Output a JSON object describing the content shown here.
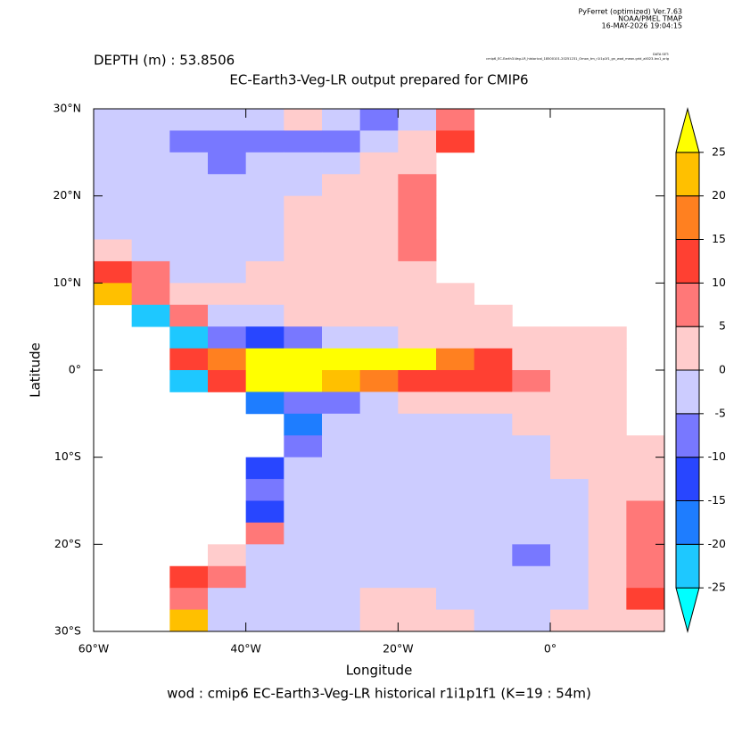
{
  "header": {
    "lines": [
      "PyFerret (optimized) Ver.7.63",
      "NOAA/PMEL TMAP",
      "16-MAY-2026 19:04:15"
    ],
    "dataset_label": "DATA SET:",
    "dataset": "cmip6_EC-Earth3-Veg-LR_historical_18500101-20251231_Omon_tm_r1i1p1f1_gn_wod_mean.grid_all023-lev1_orig"
  },
  "chart_data": {
    "type": "heatmap",
    "subtitle": "DEPTH (m) : 53.8506",
    "title": "EC-Earth3-Veg-LR output prepared for CMIP6",
    "x_label": "Longitude",
    "y_label": "Latitude",
    "footer": "wod : cmip6 EC-Earth3-Veg-LR historical r1i1p1f1   (K=19 : 54m)",
    "xlim": [
      -60,
      15
    ],
    "ylim": [
      -30,
      30
    ],
    "xticks": [
      {
        "value": -60,
        "label": "60°W"
      },
      {
        "value": -40,
        "label": "40°W"
      },
      {
        "value": -20,
        "label": "20°W"
      },
      {
        "value": 0,
        "label": "0°"
      }
    ],
    "yticks": [
      {
        "value": -30,
        "label": "30°S"
      },
      {
        "value": -20,
        "label": "20°S"
      },
      {
        "value": -10,
        "label": "10°S"
      },
      {
        "value": 0,
        "label": "0°"
      },
      {
        "value": 10,
        "label": "10°N"
      },
      {
        "value": 20,
        "label": "20°N"
      },
      {
        "value": 30,
        "label": "30°N"
      }
    ],
    "x": [
      -57.5,
      -52.5,
      -47.5,
      -42.5,
      -37.5,
      -32.5,
      -27.5,
      -22.5,
      -17.5,
      -12.5,
      -7.5,
      -2.5,
      2.5,
      7.5,
      12.5
    ],
    "y": [
      28.75,
      26.25,
      23.75,
      21.25,
      18.75,
      16.25,
      13.75,
      11.25,
      8.75,
      6.25,
      3.75,
      1.25,
      -1.25,
      -3.75,
      -6.25,
      -8.75,
      -11.25,
      -13.75,
      -16.25,
      -18.75,
      -21.25,
      -23.75,
      -26.25,
      -28.75
    ],
    "values": [
      [
        -2,
        -2,
        -2,
        -2,
        -2,
        2,
        -2,
        -7,
        -2,
        7,
        null,
        null,
        null,
        null,
        null
      ],
      [
        -2,
        -2,
        -7,
        -7,
        -7,
        -7,
        -7,
        -2,
        2,
        12,
        null,
        null,
        null,
        null,
        null
      ],
      [
        -2,
        -2,
        -2,
        -7,
        -2,
        -2,
        -2,
        2,
        2,
        null,
        null,
        null,
        null,
        null,
        null
      ],
      [
        -2,
        -2,
        -2,
        -2,
        -2,
        -2,
        2,
        2,
        7,
        null,
        null,
        null,
        null,
        null,
        null
      ],
      [
        -2,
        -2,
        -2,
        -2,
        -2,
        2,
        2,
        2,
        7,
        null,
        null,
        null,
        null,
        null,
        null
      ],
      [
        -2,
        -2,
        -2,
        -2,
        -2,
        2,
        2,
        2,
        7,
        null,
        null,
        null,
        null,
        null,
        null
      ],
      [
        2,
        -2,
        -2,
        -2,
        -2,
        2,
        2,
        2,
        7,
        null,
        null,
        null,
        null,
        null,
        null
      ],
      [
        12,
        7,
        -2,
        -2,
        2,
        2,
        2,
        2,
        2,
        null,
        null,
        null,
        null,
        null,
        null
      ],
      [
        22,
        7,
        2,
        2,
        2,
        2,
        2,
        2,
        2,
        2,
        null,
        null,
        null,
        null,
        null
      ],
      [
        null,
        -22,
        7,
        -2,
        -2,
        2,
        2,
        2,
        2,
        2,
        2,
        null,
        null,
        null,
        null
      ],
      [
        null,
        null,
        -22,
        -7,
        -12,
        -7,
        -2,
        -2,
        2,
        2,
        2,
        2,
        2,
        2,
        null
      ],
      [
        null,
        null,
        12,
        17,
        27,
        27,
        27,
        27,
        27,
        17,
        12,
        2,
        2,
        2,
        null
      ],
      [
        null,
        null,
        -22,
        12,
        27,
        27,
        22,
        17,
        12,
        12,
        12,
        7,
        2,
        2,
        null
      ],
      [
        null,
        null,
        null,
        null,
        -17,
        -7,
        -7,
        -2,
        2,
        2,
        2,
        2,
        2,
        2,
        null
      ],
      [
        null,
        null,
        null,
        null,
        null,
        -17,
        -2,
        -2,
        -2,
        -2,
        -2,
        2,
        2,
        2,
        null
      ],
      [
        null,
        null,
        null,
        null,
        null,
        -7,
        -2,
        -2,
        -2,
        -2,
        -2,
        -2,
        2,
        2,
        2
      ],
      [
        null,
        null,
        null,
        null,
        -12,
        -2,
        -2,
        -2,
        -2,
        -2,
        -2,
        -2,
        2,
        2,
        2
      ],
      [
        null,
        null,
        null,
        null,
        -7,
        -2,
        -2,
        -2,
        -2,
        -2,
        -2,
        -2,
        -2,
        2,
        2
      ],
      [
        null,
        null,
        null,
        null,
        -12,
        -2,
        -2,
        -2,
        -2,
        -2,
        -2,
        -2,
        -2,
        2,
        7
      ],
      [
        null,
        null,
        null,
        null,
        7,
        -2,
        -2,
        -2,
        -2,
        -2,
        -2,
        -2,
        -2,
        2,
        7
      ],
      [
        null,
        null,
        null,
        2,
        -2,
        -2,
        -2,
        -2,
        -2,
        -2,
        -2,
        -7,
        -2,
        2,
        7
      ],
      [
        null,
        null,
        12,
        7,
        -2,
        -2,
        -2,
        -2,
        -2,
        -2,
        -2,
        -2,
        -2,
        2,
        7
      ],
      [
        null,
        null,
        7,
        -2,
        -2,
        -2,
        -2,
        2,
        2,
        -2,
        -2,
        -2,
        -2,
        2,
        12
      ],
      [
        null,
        null,
        22,
        -2,
        -2,
        -2,
        -2,
        2,
        2,
        2,
        -2,
        -2,
        2,
        2,
        2
      ]
    ],
    "levels": [
      -25,
      -20,
      -15,
      -10,
      -5,
      0,
      5,
      10,
      15,
      20,
      25
    ],
    "colors": [
      "#00ffff",
      "#1ec8ff",
      "#1e7dff",
      "#2846ff",
      "#7878ff",
      "#ccccff",
      "#ffcccc",
      "#ff7878",
      "#ff4032",
      "#ff8020",
      "#ffc000",
      "#ffff00"
    ]
  }
}
